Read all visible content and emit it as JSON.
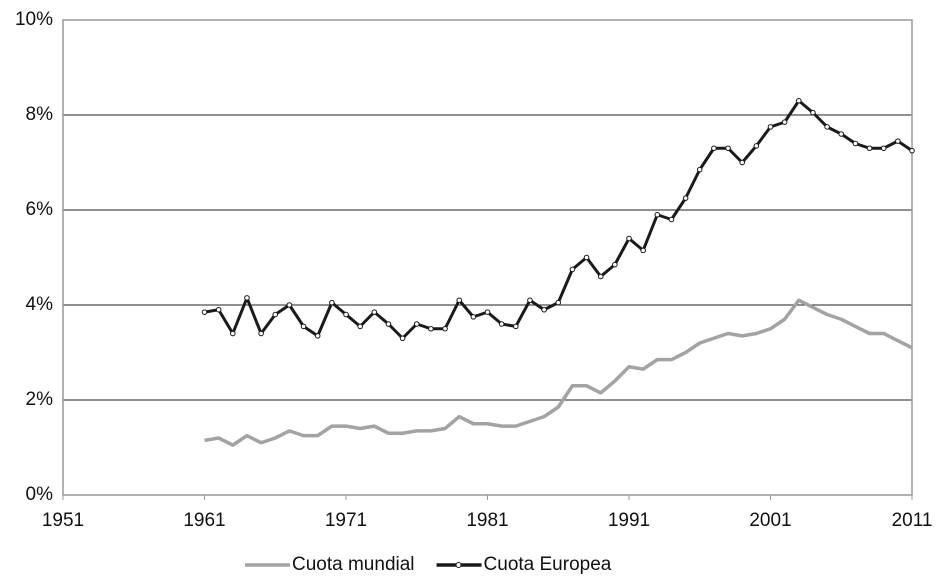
{
  "chart_data": {
    "type": "line",
    "x": [
      1961,
      1962,
      1963,
      1964,
      1965,
      1966,
      1967,
      1968,
      1969,
      1970,
      1971,
      1972,
      1973,
      1974,
      1975,
      1976,
      1977,
      1978,
      1979,
      1980,
      1981,
      1982,
      1983,
      1984,
      1985,
      1986,
      1987,
      1988,
      1989,
      1990,
      1991,
      1992,
      1993,
      1994,
      1995,
      1996,
      1997,
      1998,
      1999,
      2000,
      2001,
      2002,
      2003,
      2004,
      2005,
      2006,
      2007,
      2008,
      2009,
      2010,
      2011
    ],
    "series": [
      {
        "name": "Cuota mundial",
        "color": "#a3a3a3",
        "marker": false,
        "values": [
          1.15,
          1.2,
          1.05,
          1.25,
          1.1,
          1.2,
          1.35,
          1.25,
          1.25,
          1.45,
          1.45,
          1.4,
          1.45,
          1.3,
          1.3,
          1.35,
          1.35,
          1.4,
          1.65,
          1.5,
          1.5,
          1.45,
          1.45,
          1.55,
          1.65,
          1.85,
          2.3,
          2.3,
          2.15,
          2.4,
          2.7,
          2.65,
          2.85,
          2.85,
          3.0,
          3.2,
          3.3,
          3.4,
          3.35,
          3.4,
          3.5,
          3.7,
          4.1,
          3.95,
          3.8,
          3.7,
          3.55,
          3.4,
          3.4,
          3.25,
          3.1
        ]
      },
      {
        "name": "Cuota Europea",
        "color": "#1a1a1a",
        "marker": true,
        "values": [
          3.85,
          3.9,
          3.4,
          4.15,
          3.4,
          3.8,
          4.0,
          3.55,
          3.35,
          4.05,
          3.8,
          3.55,
          3.85,
          3.6,
          3.3,
          3.6,
          3.5,
          3.5,
          4.1,
          3.75,
          3.85,
          3.6,
          3.55,
          4.1,
          3.9,
          4.05,
          4.75,
          5.0,
          4.6,
          4.85,
          5.4,
          5.15,
          5.9,
          5.8,
          6.25,
          6.85,
          7.3,
          7.3,
          7.0,
          7.35,
          7.75,
          7.85,
          8.3,
          8.05,
          7.75,
          7.6,
          7.4,
          7.3,
          7.3,
          7.45,
          7.25
        ]
      }
    ],
    "xlim": [
      1951,
      2011
    ],
    "xticks": [
      1951,
      1961,
      1971,
      1981,
      1991,
      2001,
      2011
    ],
    "ylim": [
      0,
      10
    ],
    "yticks": [
      {
        "value": 0,
        "label": "0%"
      },
      {
        "value": 2,
        "label": "2%"
      },
      {
        "value": 4,
        "label": "4%"
      },
      {
        "value": 6,
        "label": "6%"
      },
      {
        "value": 8,
        "label": "8%"
      },
      {
        "value": 10,
        "label": "10%"
      }
    ],
    "grid": true,
    "legend": "bottom"
  }
}
